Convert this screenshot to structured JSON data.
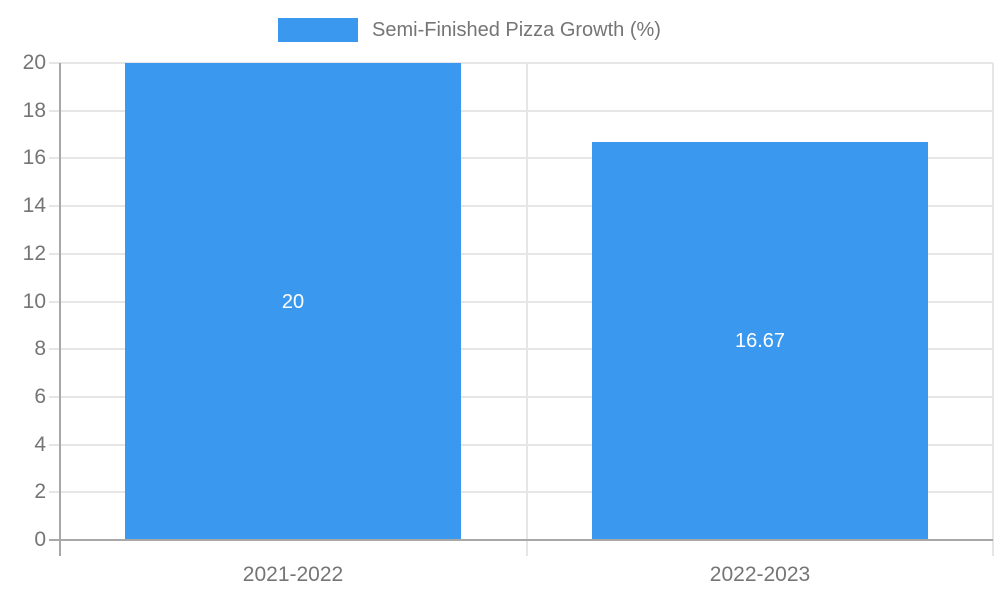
{
  "chart_data": {
    "type": "bar",
    "title": "Semi-Finished Pizza Growth (%)",
    "categories": [
      "2021-2022",
      "2022-2023"
    ],
    "series": [
      {
        "name": "Semi-Finished Pizza Growth (%)",
        "values": [
          20,
          16.67
        ]
      }
    ],
    "value_labels": [
      "20",
      "16.67"
    ],
    "xlabel": "",
    "ylabel": "",
    "ylim": [
      0,
      20
    ],
    "ytick_step": 2,
    "ytick_labels": [
      "0",
      "2",
      "4",
      "6",
      "8",
      "10",
      "12",
      "14",
      "16",
      "18",
      "20"
    ],
    "grid": true,
    "legend_position": "top",
    "value_label_position": "inside-center"
  },
  "legend": {
    "label": "Semi-Finished Pizza Growth (%)"
  },
  "colors": {
    "bar": "#3a99ef",
    "axis": "#a8a8a8",
    "grid": "#e6e6e6",
    "tick_text": "#757575",
    "bar_label_text": "#ffffff",
    "background": "#ffffff"
  }
}
